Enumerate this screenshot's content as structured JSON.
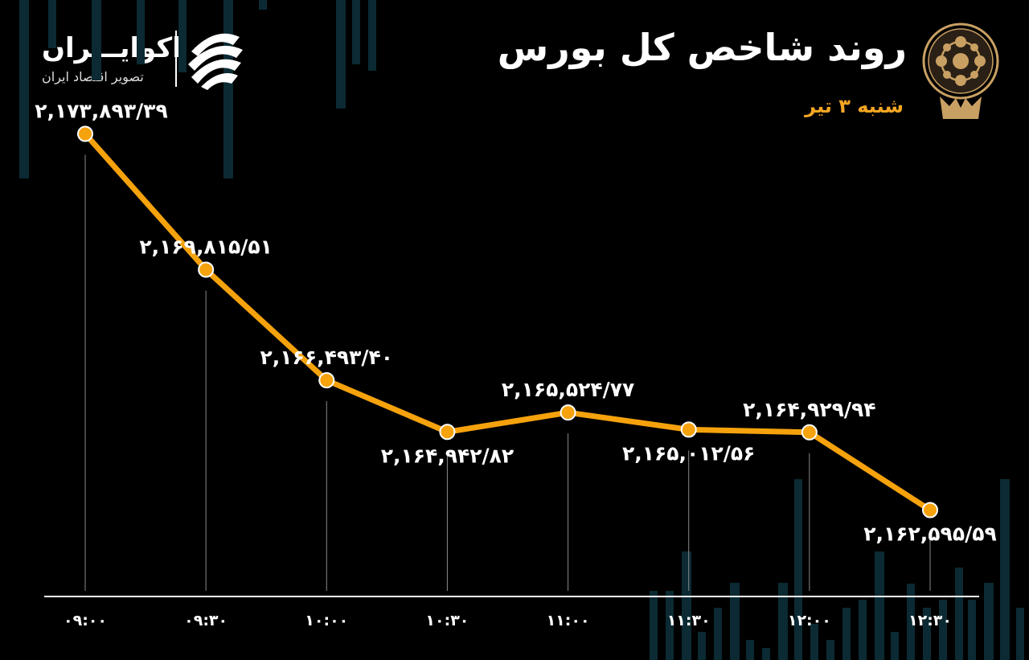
{
  "header": {
    "title": "روند شاخص کل بورس",
    "subtitle": "شنبه ۳ تیر"
  },
  "brand": {
    "name": "اکوایـــران",
    "tagline": "تصویر اقتصاد ایران",
    "logo_icon": "ekoiran-logo-icon",
    "emblem_icon": "stock-exchange-emblem-icon"
  },
  "colors": {
    "background": "#000000",
    "line": "#f5a20d",
    "marker_fill": "#f5a20d",
    "marker_stroke": "#ffffff",
    "text": "#ffffff",
    "accent": "#f5a623",
    "bg_bars": "#0b2a33"
  },
  "chart_data": {
    "type": "line",
    "title": "روند شاخص کل بورس",
    "categories": [
      "۰۹:۰۰",
      "۰۹:۳۰",
      "۱۰:۰۰",
      "۱۰:۳۰",
      "۱۱:۰۰",
      "۱۱:۳۰",
      "۱۲:۰۰",
      "۱۲:۳۰"
    ],
    "values": [
      2173893.39,
      2169815.51,
      2166493.4,
      2164942.82,
      2165524.77,
      2165012.56,
      2164929.94,
      2162595.59
    ],
    "data_labels": [
      "۲,۱۷۳,۸۹۳/۳۹",
      "۲,۱۶۹,۸۱۵/۵۱",
      "۲,۱۶۶,۴۹۳/۴۰",
      "۲,۱۶۴,۹۴۲/۸۲",
      "۲,۱۶۵,۵۲۴/۷۷",
      "۲,۱۶۵,۰۱۲/۵۶",
      "۲,۱۶۴,۹۲۹/۹۴",
      "۲,۱۶۲,۵۹۵/۵۹"
    ],
    "label_position": [
      "above",
      "above",
      "above",
      "below",
      "above",
      "below",
      "above",
      "below"
    ],
    "ylim": [
      2160000,
      2175500
    ],
    "grid": false,
    "xlabel": "",
    "ylabel": ""
  }
}
